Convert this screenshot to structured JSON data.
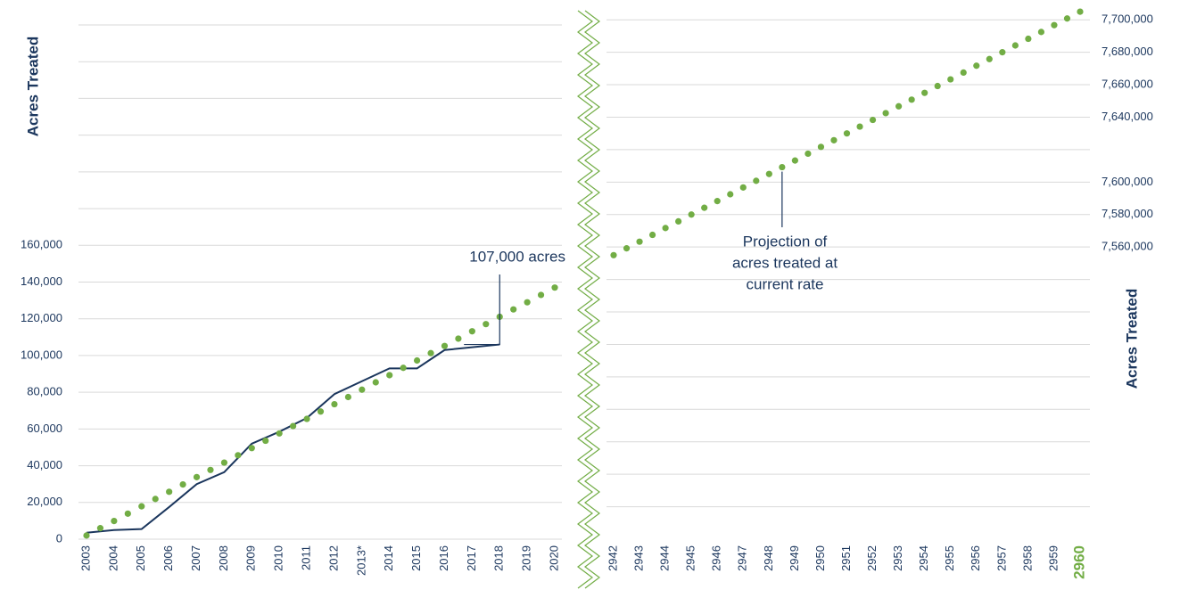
{
  "chart_data": [
    {
      "type": "line",
      "y_label": "Acres Treated",
      "xlim": [
        2003,
        2020
      ],
      "xticks": [
        2003,
        2004,
        2005,
        2006,
        2007,
        2008,
        2009,
        2010,
        2011,
        2012,
        {
          "value": 2013,
          "label": "2013*"
        },
        2014,
        2015,
        2016,
        2017,
        2018,
        2019,
        2020
      ],
      "ylim": [
        0,
        280000
      ],
      "yticks": [
        {
          "value": 0,
          "label": "0"
        },
        {
          "value": 20000,
          "label": "20,000"
        },
        {
          "value": 40000,
          "label": "40,000"
        },
        {
          "value": 60000,
          "label": "60,000"
        },
        {
          "value": 80000,
          "label": "80,000"
        },
        {
          "value": 100000,
          "label": "100,000"
        },
        {
          "value": 120000,
          "label": "120,000"
        },
        {
          "value": 140000,
          "label": "140,000"
        },
        {
          "value": 160000,
          "label": "160,000"
        }
      ],
      "ygrid": [
        0,
        20000,
        40000,
        60000,
        80000,
        100000,
        120000,
        140000,
        160000,
        180000,
        200000,
        220000,
        240000,
        260000,
        280000
      ],
      "annotation": "107,000 acres",
      "series": [
        {
          "style": "line",
          "color": "#1b365d",
          "x": [
            2003,
            2004,
            2005,
            2006,
            2007,
            2008,
            2009,
            2010,
            2011,
            2012,
            2013,
            2014,
            2015,
            2016,
            2017,
            2018
          ],
          "values": [
            3500,
            5000,
            5500,
            17500,
            30000,
            36500,
            52000,
            58500,
            66000,
            79000,
            86000,
            93000,
            93000,
            103000,
            104500,
            106000
          ]
        },
        {
          "style": "dots",
          "color": "#72ad45",
          "x": [
            2003,
            2003.5,
            2004,
            2004.5,
            2005,
            2005.5,
            2006,
            2006.5,
            2007,
            2007.5,
            2008,
            2008.5,
            2009,
            2009.5,
            2010,
            2010.5,
            2011,
            2011.5,
            2012,
            2012.5,
            2013,
            2013.5,
            2014,
            2014.5,
            2015,
            2015.5,
            2016,
            2016.5,
            2017,
            2017.5,
            2018,
            2018.5,
            2019,
            2019.5,
            2020
          ],
          "values": [
            2000,
            6000,
            9900,
            13900,
            17900,
            21900,
            25800,
            29800,
            33800,
            37700,
            41700,
            45700,
            49600,
            53600,
            57600,
            61600,
            65500,
            69500,
            73500,
            77400,
            81400,
            85400,
            89300,
            93300,
            97300,
            101300,
            105200,
            109200,
            113200,
            117100,
            121100,
            125100,
            129000,
            133000,
            137000
          ]
        }
      ]
    },
    {
      "type": "line",
      "y2_label": "Acres Treated",
      "xlim": [
        2942,
        2960
      ],
      "xticks": [
        2942,
        2943,
        2944,
        2945,
        2946,
        2947,
        2948,
        2949,
        2950,
        2951,
        2952,
        2953,
        2954,
        2955,
        2956,
        2957,
        2958,
        2959,
        2960
      ],
      "highlight_tick_color": "#72ad45",
      "y2lim": [
        7380000,
        7710000
      ],
      "y2ticks": [
        {
          "value": 7560000,
          "label": "7,560,000"
        },
        {
          "value": 7580000,
          "label": "7,580,000"
        },
        {
          "value": 7600000,
          "label": "7,600,000"
        },
        {
          "value": 7640000,
          "label": "7,640,000"
        },
        {
          "value": 7660000,
          "label": "7,660,000"
        },
        {
          "value": 7680000,
          "label": "7,680,000"
        },
        {
          "value": 7700000,
          "label": "7,700,000"
        }
      ],
      "y2grid": [
        7400000,
        7420000,
        7440000,
        7460000,
        7480000,
        7500000,
        7520000,
        7540000,
        7560000,
        7580000,
        7600000,
        7620000,
        7640000,
        7660000,
        7680000,
        7700000
      ],
      "annotation": [
        "Projection of",
        "acres treated at",
        "current rate"
      ],
      "series": [
        {
          "style": "dots",
          "color": "#72ad45",
          "axis": "y2",
          "x": [
            2942,
            2942.5,
            2943,
            2943.5,
            2944,
            2944.5,
            2945,
            2945.5,
            2946,
            2946.5,
            2947,
            2947.5,
            2948,
            2948.5,
            2949,
            2949.5,
            2950,
            2950.5,
            2951,
            2951.5,
            2952,
            2952.5,
            2953,
            2953.5,
            2954,
            2954.5,
            2955,
            2955.5,
            2956,
            2956.5,
            2957,
            2957.5,
            2958,
            2958.5,
            2959,
            2959.5,
            2960
          ],
          "values": [
            7555000,
            7559200,
            7563300,
            7567500,
            7571700,
            7575800,
            7580000,
            7584200,
            7588300,
            7592500,
            7596700,
            7600800,
            7605000,
            7609200,
            7613300,
            7617500,
            7621700,
            7625800,
            7630000,
            7634200,
            7638300,
            7642500,
            7646700,
            7650800,
            7655000,
            7659200,
            7663300,
            7667500,
            7671700,
            7675800,
            7680000,
            7684200,
            7688300,
            7692500,
            7696700,
            7700800,
            7705000
          ]
        }
      ]
    }
  ]
}
